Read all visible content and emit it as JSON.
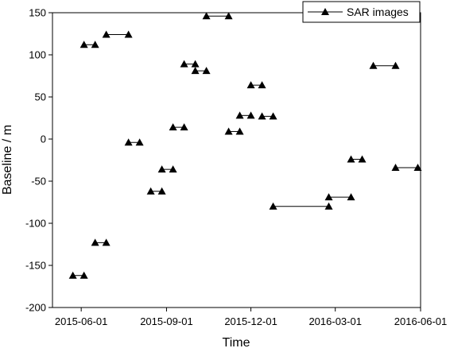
{
  "chart_data": {
    "type": "scatter",
    "title": "",
    "xlabel": "Time",
    "ylabel": "Baseline / m",
    "x_axis_type": "date",
    "xlim": [
      "2015-05-01",
      "2016-06-01"
    ],
    "ylim": [
      -200,
      150
    ],
    "x_ticks": [
      "2015-06-01",
      "2015-09-01",
      "2015-12-01",
      "2016-03-01",
      "2016-06-01"
    ],
    "y_ticks": [
      -200,
      -150,
      -100,
      -50,
      0,
      50,
      100,
      150
    ],
    "grid": false,
    "legend": {
      "position": "top-right",
      "entries": [
        "SAR images"
      ]
    },
    "marker": "triangle-up",
    "color": "#000000",
    "series": [
      {
        "name": "SAR images",
        "pairs": [
          [
            [
              "2015-05-23",
              -162
            ],
            [
              "2015-06-04",
              -162
            ]
          ],
          [
            [
              "2015-06-04",
              112
            ],
            [
              "2015-06-16",
              112
            ]
          ],
          [
            [
              "2015-06-16",
              -123
            ],
            [
              "2015-06-28",
              -123
            ]
          ],
          [
            [
              "2015-06-28",
              124
            ],
            [
              "2015-07-22",
              124
            ]
          ],
          [
            [
              "2015-07-22",
              -4
            ],
            [
              "2015-08-03",
              -4
            ]
          ],
          [
            [
              "2015-08-15",
              -62
            ],
            [
              "2015-08-27",
              -62
            ]
          ],
          [
            [
              "2015-08-27",
              -36
            ],
            [
              "2015-09-08",
              -36
            ]
          ],
          [
            [
              "2015-09-08",
              14
            ],
            [
              "2015-09-20",
              14
            ]
          ],
          [
            [
              "2015-09-20",
              89
            ],
            [
              "2015-10-02",
              89
            ]
          ],
          [
            [
              "2015-10-02",
              81
            ],
            [
              "2015-10-14",
              81
            ]
          ],
          [
            [
              "2015-10-14",
              146
            ],
            [
              "2015-11-07",
              146
            ]
          ],
          [
            [
              "2015-11-07",
              9
            ],
            [
              "2015-11-19",
              9
            ]
          ],
          [
            [
              "2015-11-19",
              28
            ],
            [
              "2015-12-01",
              28
            ]
          ],
          [
            [
              "2015-12-01",
              64
            ],
            [
              "2015-12-13",
              64
            ]
          ],
          [
            [
              "2015-12-13",
              27
            ],
            [
              "2015-12-25",
              27
            ]
          ],
          [
            [
              "2015-12-25",
              -80
            ],
            [
              "2016-02-23",
              -80
            ]
          ],
          [
            [
              "2016-02-23",
              -69
            ],
            [
              "2016-03-18",
              -69
            ]
          ],
          [
            [
              "2016-03-18",
              -24
            ],
            [
              "2016-03-30",
              -24
            ]
          ],
          [
            [
              "2016-04-11",
              87
            ],
            [
              "2016-05-05",
              87
            ]
          ],
          [
            [
              "2016-05-05",
              -34
            ],
            [
              "2016-05-29",
              -34
            ]
          ]
        ]
      }
    ]
  }
}
